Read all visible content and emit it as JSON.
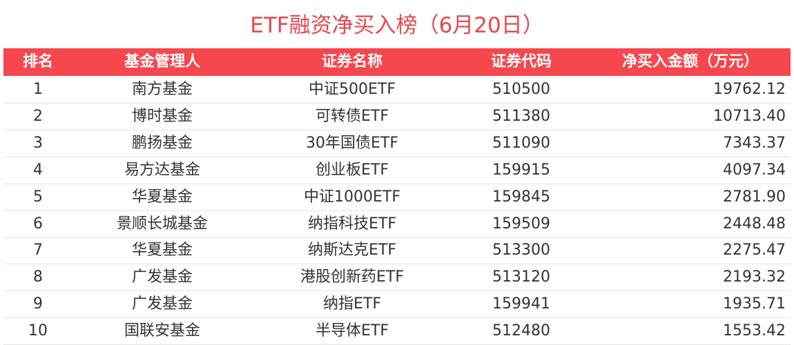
{
  "title": "ETF融资净买入榜（6月20日）",
  "table": {
    "headers": [
      "排名",
      "基金管理人",
      "证券名称",
      "证券代码",
      "净买入金额（万元）"
    ],
    "rows": [
      [
        "1",
        "南方基金",
        "中证500ETF",
        "510500",
        "19762.12"
      ],
      [
        "2",
        "博时基金",
        "可转债ETF",
        "511380",
        "10713.40"
      ],
      [
        "3",
        "鹏扬基金",
        "30年国债ETF",
        "511090",
        "7343.37"
      ],
      [
        "4",
        "易方达基金",
        "创业板ETF",
        "159915",
        "4097.34"
      ],
      [
        "5",
        "华夏基金",
        "中证1000ETF",
        "159845",
        "2781.90"
      ],
      [
        "6",
        "景顺长城基金",
        "纳指科技ETF",
        "159509",
        "2448.48"
      ],
      [
        "7",
        "华夏基金",
        "纳斯达克ETF",
        "513300",
        "2275.47"
      ],
      [
        "8",
        "广发基金",
        "港股创新药ETF",
        "513120",
        "2193.32"
      ],
      [
        "9",
        "广发基金",
        "纳指ETF",
        "159941",
        "1935.71"
      ],
      [
        "10",
        "国联安基金",
        "半导体ETF",
        "512480",
        "1553.42"
      ]
    ]
  }
}
